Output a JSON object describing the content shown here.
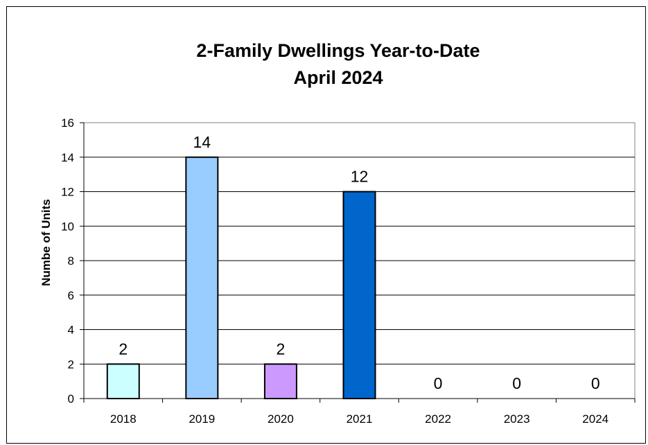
{
  "chart_data": {
    "type": "bar",
    "title": "2-Family Dwellings Year-to-Date",
    "subtitle": "April 2024",
    "xlabel": "",
    "ylabel": "Numbe of Units",
    "categories": [
      "2018",
      "2019",
      "2020",
      "2021",
      "2022",
      "2023",
      "2024"
    ],
    "values": [
      2,
      14,
      2,
      12,
      0,
      0,
      0
    ],
    "colors": [
      "#ccffff",
      "#99ccff",
      "#cc99ff",
      "#0066cc",
      "#0066cc",
      "#0066cc",
      "#0066cc"
    ],
    "ylim": [
      0,
      16
    ],
    "yticks": [
      0,
      2,
      4,
      6,
      8,
      10,
      12,
      14,
      16
    ],
    "grid": true,
    "legend": "none",
    "data_labels": true
  }
}
